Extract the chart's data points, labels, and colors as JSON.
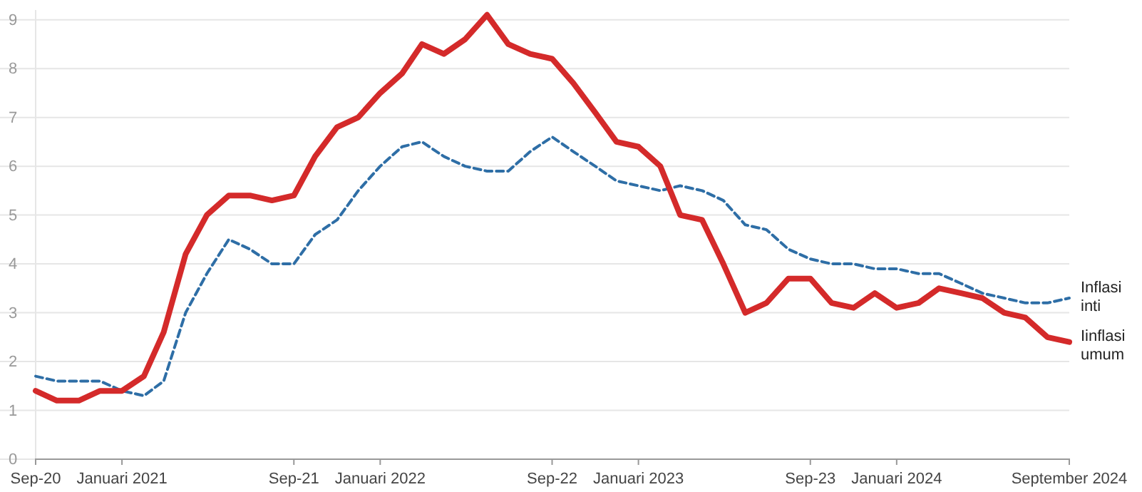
{
  "chart_data": {
    "type": "line",
    "x": [
      "2020-09",
      "2020-10",
      "2020-11",
      "2020-12",
      "2021-01",
      "2021-02",
      "2021-03",
      "2021-04",
      "2021-05",
      "2021-06",
      "2021-07",
      "2021-08",
      "2021-09",
      "2021-10",
      "2021-11",
      "2021-12",
      "2022-01",
      "2022-02",
      "2022-03",
      "2022-04",
      "2022-05",
      "2022-06",
      "2022-07",
      "2022-08",
      "2022-09",
      "2022-10",
      "2022-11",
      "2022-12",
      "2023-01",
      "2023-02",
      "2023-03",
      "2023-04",
      "2023-05",
      "2023-06",
      "2023-07",
      "2023-08",
      "2023-09",
      "2023-10",
      "2023-11",
      "2023-12",
      "2024-01",
      "2024-02",
      "2024-03",
      "2024-04",
      "2024-05",
      "2024-06",
      "2024-07",
      "2024-08",
      "2024-09"
    ],
    "series": [
      {
        "name": "Inflasi inti",
        "color": "#2e6ea6",
        "line_style": "dashed",
        "values": [
          1.7,
          1.6,
          1.6,
          1.6,
          1.4,
          1.3,
          1.6,
          3.0,
          3.8,
          4.5,
          4.3,
          4.0,
          4.0,
          4.6,
          4.9,
          5.5,
          6.0,
          6.4,
          6.5,
          6.2,
          6.0,
          5.9,
          5.9,
          6.3,
          6.6,
          6.3,
          6.0,
          5.7,
          5.6,
          5.5,
          5.6,
          5.5,
          5.3,
          4.8,
          4.7,
          4.3,
          4.1,
          4.0,
          4.0,
          3.9,
          3.9,
          3.8,
          3.8,
          3.6,
          3.4,
          3.3,
          3.2,
          3.2,
          3.3
        ]
      },
      {
        "name": "Iinflasi umum",
        "color": "#d42a2a",
        "line_style": "solid",
        "values": [
          1.4,
          1.2,
          1.2,
          1.4,
          1.4,
          1.7,
          2.6,
          4.2,
          5.0,
          5.4,
          5.4,
          5.3,
          5.4,
          6.2,
          6.8,
          7.0,
          7.5,
          7.9,
          8.5,
          8.3,
          8.6,
          9.1,
          8.5,
          8.3,
          8.2,
          7.7,
          7.1,
          6.5,
          6.4,
          6.0,
          5.0,
          4.9,
          4.0,
          3.0,
          3.2,
          3.7,
          3.7,
          3.2,
          3.1,
          3.4,
          3.1,
          3.2,
          3.5,
          3.4,
          3.3,
          3.0,
          2.9,
          2.5,
          2.4
        ]
      }
    ],
    "xlim": [
      "2020-09",
      "2024-09"
    ],
    "xticks": [
      {
        "value": "2020-09",
        "label": "Sep-20"
      },
      {
        "value": "2021-01",
        "label": "Januari 2021"
      },
      {
        "value": "2021-09",
        "label": "Sep-21"
      },
      {
        "value": "2022-01",
        "label": "Januari 2022"
      },
      {
        "value": "2022-09",
        "label": "Sep-22"
      },
      {
        "value": "2023-01",
        "label": "Januari 2023"
      },
      {
        "value": "2023-09",
        "label": "Sep-23"
      },
      {
        "value": "2024-01",
        "label": "Januari 2024"
      },
      {
        "value": "2024-09",
        "label": "September 2024"
      }
    ],
    "ylim": [
      0,
      9.2
    ],
    "yticks": [
      0,
      1,
      2,
      3,
      4,
      5,
      6,
      7,
      8,
      9
    ],
    "grid": "y",
    "legend": false,
    "marker": "none"
  }
}
